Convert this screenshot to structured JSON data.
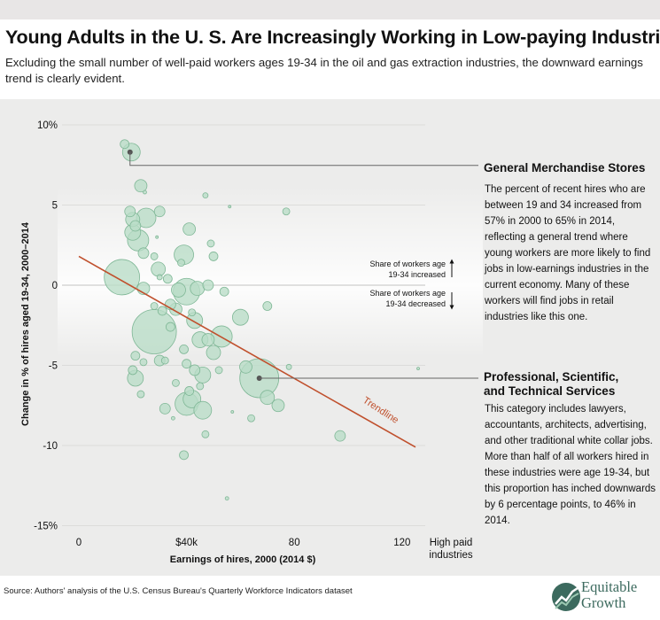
{
  "header": {
    "title": "Young Adults in the U. S. Are Increasingly Working in Low-paying Industries",
    "subtitle": "Excluding the small number of well-paid workers ages 19-34 in the oil and gas extraction industries, the downward earnings trend is clearly evident."
  },
  "annotations": {
    "gm_title": "General Merchandise Stores",
    "gm_body": "The percent of recent hires who are between 19 and 34 increased from 57% in 2000 to 65% in 2014, reflecting a general trend where young workers are more likely to find jobs in low-earnings industries in the current economy. Many of these workers will find jobs in retail industries like this one.",
    "pst_title": "Professional, Scientific, and Technical Services",
    "pst_body": "This category includes lawyers, accountants, architects, advertising, and other traditional white collar jobs. More than half of all  workers hired in these industries were age 19-34, but this proportion has inched downwards by 6 percentage points, to 46% in 2014.",
    "inc_line1": "Share of workers age",
    "inc_line2": "19-34 increased",
    "dec_line1": "Share of workers age",
    "dec_line2": "19-34 decreased",
    "trendline": "Trendline",
    "high_paid_1": "High paid",
    "high_paid_2": "industries"
  },
  "source": "Source: Authors' analysis of the U.S. Census Bureau's Quarterly Workforce Indicators dataset",
  "logo": {
    "line1": "Equitable",
    "line2": "Growth"
  },
  "colors": {
    "bubble_fill": "#b9dcc7",
    "bubble_stroke": "#7fb796",
    "trend": "#c0502d",
    "panel": "#ececeb",
    "brand": "#3c6a5e"
  },
  "chart_data": {
    "type": "scatter",
    "xlabel": "Earnings of hires, 2000 (2014 $)",
    "ylabel": "Change in % of hires aged 19-34, 2000–2014",
    "xlim": [
      -5,
      140
    ],
    "ylim": [
      -15,
      10
    ],
    "x_ticks": [
      {
        "value": 0,
        "label": "0"
      },
      {
        "value": 40,
        "label": "$40k"
      },
      {
        "value": 80,
        "label": "80"
      },
      {
        "value": 120,
        "label": "120"
      }
    ],
    "y_ticks": [
      {
        "value": 10,
        "label": "10%"
      },
      {
        "value": 5,
        "label": "5"
      },
      {
        "value": 0,
        "label": "0"
      },
      {
        "value": -5,
        "label": "-5"
      },
      {
        "value": -10,
        "label": "-10"
      },
      {
        "value": -15,
        "label": "-15%"
      }
    ],
    "trendline": {
      "x": [
        0,
        125
      ],
      "y": [
        1.8,
        -10.1
      ]
    },
    "highlighted": [
      {
        "x": 19,
        "y": 8.3,
        "label": "General Merchandise Stores"
      },
      {
        "x": 67,
        "y": -5.8,
        "label": "Professional, Scientific, and Technical Services"
      }
    ],
    "points": [
      [
        17,
        8.8,
        5
      ],
      [
        19.5,
        8.3,
        10
      ],
      [
        23,
        6.2,
        7
      ],
      [
        24.5,
        5.8,
        2
      ],
      [
        47,
        5.6,
        3
      ],
      [
        56,
        4.9,
        1.5
      ],
      [
        77,
        4.6,
        4
      ],
      [
        19,
        4.6,
        6
      ],
      [
        25,
        4.2,
        11
      ],
      [
        30,
        4.6,
        6
      ],
      [
        20,
        4.1,
        8
      ],
      [
        21,
        3.7,
        6
      ],
      [
        20,
        3.3,
        9
      ],
      [
        29,
        3.0,
        1.5
      ],
      [
        41,
        3.5,
        7
      ],
      [
        22,
        2.8,
        12
      ],
      [
        49,
        2.6,
        4
      ],
      [
        24,
        2.0,
        6
      ],
      [
        28,
        1.8,
        4
      ],
      [
        39,
        1.9,
        11
      ],
      [
        50,
        1.8,
        5
      ],
      [
        38,
        1.4,
        4
      ],
      [
        29.5,
        1.0,
        8
      ],
      [
        33,
        0.4,
        5
      ],
      [
        16,
        0.5,
        20
      ],
      [
        30,
        0.5,
        3
      ],
      [
        37,
        -0.3,
        8
      ],
      [
        40,
        -0.4,
        15
      ],
      [
        44,
        -0.2,
        8
      ],
      [
        48,
        0.0,
        6
      ],
      [
        54,
        -0.4,
        5
      ],
      [
        24,
        -0.2,
        7
      ],
      [
        34,
        -1.2,
        6
      ],
      [
        28,
        -1.3,
        4
      ],
      [
        31,
        -1.6,
        5
      ],
      [
        36,
        -1.5,
        7
      ],
      [
        42,
        -1.7,
        4
      ],
      [
        70,
        -1.3,
        5
      ],
      [
        28,
        -2.9,
        25
      ],
      [
        43,
        -2.2,
        9
      ],
      [
        60,
        -2.0,
        9
      ],
      [
        34,
        -2.6,
        5
      ],
      [
        45,
        -3.4,
        9
      ],
      [
        48,
        -3.4,
        7
      ],
      [
        53,
        -3.2,
        12
      ],
      [
        39,
        -4.0,
        5
      ],
      [
        50,
        -4.2,
        8
      ],
      [
        21,
        -4.4,
        5
      ],
      [
        30,
        -4.7,
        6
      ],
      [
        32,
        -4.7,
        4
      ],
      [
        24,
        -4.8,
        4
      ],
      [
        40,
        -4.9,
        5
      ],
      [
        43,
        -5.3,
        6
      ],
      [
        46,
        -5.6,
        9
      ],
      [
        52,
        -5.3,
        4
      ],
      [
        62,
        -5.1,
        7
      ],
      [
        67,
        -5.8,
        22
      ],
      [
        78,
        -5.1,
        3
      ],
      [
        20,
        -5.3,
        5
      ],
      [
        21,
        -5.8,
        9
      ],
      [
        36,
        -6.1,
        4
      ],
      [
        41,
        -6.6,
        5
      ],
      [
        45,
        -6.3,
        4
      ],
      [
        23,
        -6.8,
        4
      ],
      [
        70,
        -7.0,
        8
      ],
      [
        74,
        -7.5,
        7
      ],
      [
        32,
        -7.7,
        6
      ],
      [
        40,
        -7.4,
        13
      ],
      [
        42,
        -7.1,
        10
      ],
      [
        46,
        -7.8,
        10
      ],
      [
        35,
        -8.3,
        2
      ],
      [
        57,
        -7.9,
        1.5
      ],
      [
        64,
        -8.3,
        4
      ],
      [
        47,
        -9.3,
        4
      ],
      [
        97,
        -9.4,
        6
      ],
      [
        39,
        -10.6,
        5
      ],
      [
        55,
        -13.3,
        2
      ],
      [
        126,
        -5.2,
        1.5
      ]
    ]
  }
}
